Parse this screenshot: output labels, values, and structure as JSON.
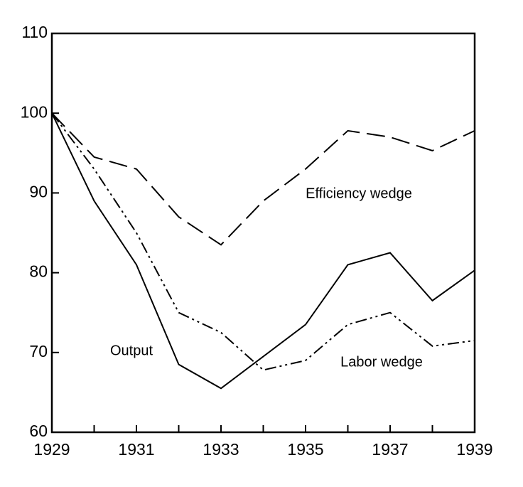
{
  "chart_data": {
    "type": "line",
    "x": [
      1929,
      1930,
      1931,
      1932,
      1933,
      1934,
      1935,
      1936,
      1937,
      1938,
      1939
    ],
    "series": [
      {
        "name": "Output",
        "color": "#000000",
        "dash": "solid",
        "values": [
          100,
          89,
          81,
          68.5,
          65.5,
          69.5,
          73.5,
          81,
          82.5,
          76.5,
          80.3
        ]
      },
      {
        "name": "Efficiency wedge",
        "color": "#000000",
        "dash": "dashed",
        "values": [
          100,
          94.5,
          93,
          87,
          83.5,
          89,
          93,
          97.8,
          97,
          95.3,
          97.8
        ]
      },
      {
        "name": "Labor wedge",
        "color": "#000000",
        "dash": "dash-dot-dot",
        "values": [
          100,
          93,
          85,
          75,
          72.5,
          67.8,
          69,
          73.5,
          75,
          70.8,
          71.5
        ]
      }
    ],
    "xlim": [
      1929,
      1939
    ],
    "xticks": [
      1929,
      1931,
      1933,
      1935,
      1937,
      1939
    ],
    "ylim": [
      60,
      110
    ],
    "yticks": [
      60,
      70,
      80,
      90,
      100,
      110
    ],
    "grid": false
  }
}
